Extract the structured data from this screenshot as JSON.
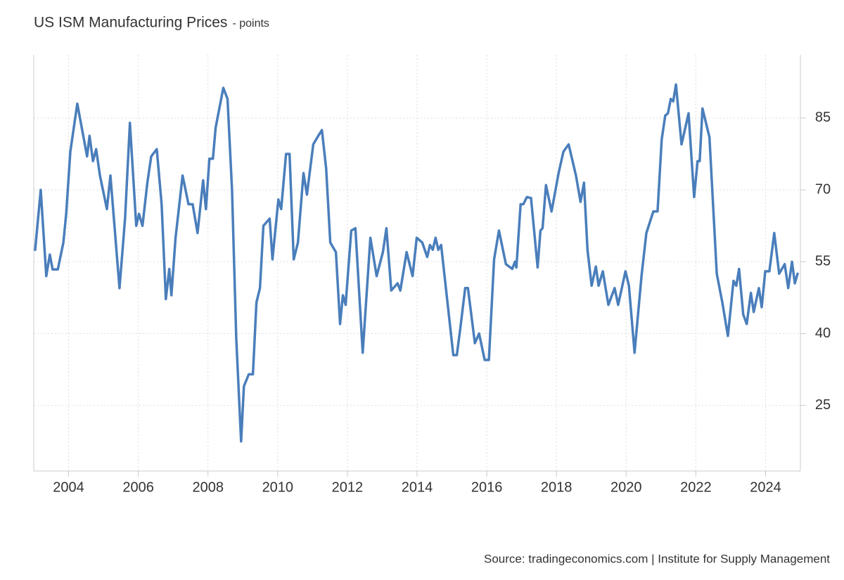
{
  "chart_data": {
    "type": "line",
    "title": "US ISM Manufacturing Prices",
    "subtitle": "- points",
    "source": "Source: tradingeconomics.com | Institute for Supply Management",
    "x": [
      2003.04,
      2003.2,
      2003.36,
      2003.46,
      2003.54,
      2003.69,
      2003.85,
      2003.93,
      2004.05,
      2004.25,
      2004.53,
      2004.6,
      2004.7,
      2004.79,
      2004.9,
      2005.1,
      2005.2,
      2005.46,
      2005.62,
      2005.76,
      2005.94,
      2006.02,
      2006.12,
      2006.26,
      2006.37,
      2006.53,
      2006.67,
      2006.79,
      2006.89,
      2006.95,
      2007.07,
      2007.27,
      2007.44,
      2007.56,
      2007.7,
      2007.86,
      2007.94,
      2008.04,
      2008.14,
      2008.22,
      2008.44,
      2008.56,
      2008.69,
      2008.81,
      2008.95,
      2009.03,
      2009.17,
      2009.29,
      2009.39,
      2009.49,
      2009.59,
      2009.77,
      2009.85,
      2010.02,
      2010.1,
      2010.24,
      2010.34,
      2010.46,
      2010.58,
      2010.74,
      2010.84,
      2011.02,
      2011.14,
      2011.27,
      2011.39,
      2011.51,
      2011.67,
      2011.79,
      2011.87,
      2011.95,
      2012.11,
      2012.23,
      2012.44,
      2012.66,
      2012.84,
      2013.02,
      2013.12,
      2013.26,
      2013.44,
      2013.52,
      2013.7,
      2013.87,
      2013.99,
      2014.15,
      2014.29,
      2014.37,
      2014.45,
      2014.53,
      2014.61,
      2014.69,
      2015.04,
      2015.14,
      2015.24,
      2015.38,
      2015.46,
      2015.66,
      2015.78,
      2015.94,
      2016.06,
      2016.21,
      2016.35,
      2016.55,
      2016.73,
      2016.81,
      2016.85,
      2016.97,
      2017.05,
      2017.15,
      2017.27,
      2017.46,
      2017.54,
      2017.6,
      2017.7,
      2017.86,
      2018.06,
      2018.2,
      2018.35,
      2018.56,
      2018.69,
      2018.79,
      2018.89,
      2019.01,
      2019.13,
      2019.21,
      2019.33,
      2019.49,
      2019.67,
      2019.77,
      2019.98,
      2020.08,
      2020.24,
      2020.44,
      2020.58,
      2020.78,
      2020.9,
      2021.02,
      2021.12,
      2021.2,
      2021.28,
      2021.35,
      2021.43,
      2021.59,
      2021.79,
      2021.95,
      2022.05,
      2022.11,
      2022.19,
      2022.39,
      2022.6,
      2022.76,
      2022.92,
      2023.08,
      2023.16,
      2023.24,
      2023.36,
      2023.46,
      2023.58,
      2023.66,
      2023.81,
      2023.89,
      2023.99,
      2024.11,
      2024.25,
      2024.39,
      2024.55,
      2024.65,
      2024.76,
      2024.84,
      2024.92
    ],
    "values": [
      57.5,
      70,
      52,
      56.5,
      53.4,
      53.4,
      59,
      65,
      78,
      88,
      77,
      81.3,
      76,
      78.5,
      73,
      66,
      73,
      49.5,
      64,
      84,
      62.5,
      65,
      62.5,
      71.5,
      77,
      78.5,
      67,
      47.2,
      53.5,
      48,
      60,
      73,
      67,
      67,
      61,
      72,
      66,
      76.5,
      76.5,
      83,
      91.3,
      89,
      70,
      39,
      17.5,
      29,
      31.5,
      31.5,
      46.5,
      49.5,
      62.5,
      64,
      55.5,
      68,
      66,
      77.5,
      77.5,
      55.5,
      59,
      73.5,
      69,
      79.5,
      81,
      82.5,
      74.5,
      59,
      57,
      42,
      48,
      46,
      61.5,
      62,
      36,
      60,
      52,
      57,
      62,
      49,
      50.5,
      49,
      57,
      52,
      60,
      59,
      56,
      58.5,
      57.5,
      60,
      57.5,
      58.5,
      35.5,
      35.5,
      41,
      49.5,
      49.5,
      38,
      40,
      34.5,
      34.5,
      55.5,
      61.5,
      54.5,
      53.5,
      55,
      53.8,
      67,
      67,
      68.5,
      68.3,
      53.8,
      61.5,
      62,
      71,
      65.5,
      73.5,
      78,
      79.5,
      73,
      67.5,
      71.5,
      57.5,
      50,
      54,
      50,
      53,
      46,
      49.5,
      46,
      53,
      50,
      36,
      52,
      61,
      65.5,
      65.5,
      80.5,
      85.5,
      86,
      89,
      88.5,
      92,
      79.5,
      86,
      68.5,
      76,
      76,
      87,
      81,
      52.5,
      46.5,
      39.5,
      51,
      50,
      53.5,
      44,
      42,
      48.5,
      44.5,
      49.5,
      45.5,
      53,
      53,
      61,
      52.5,
      54.5,
      49.5,
      55,
      50.5,
      52.5
    ],
    "color": "#4a7ebb",
    "xlim": [
      2003,
      2025
    ],
    "xticks": [
      2004,
      2006,
      2008,
      2010,
      2012,
      2014,
      2016,
      2018,
      2020,
      2022,
      2024
    ],
    "ylim": [
      11.3,
      98.2
    ],
    "yticks": [
      25,
      40,
      55,
      70,
      85
    ],
    "grid": true
  }
}
